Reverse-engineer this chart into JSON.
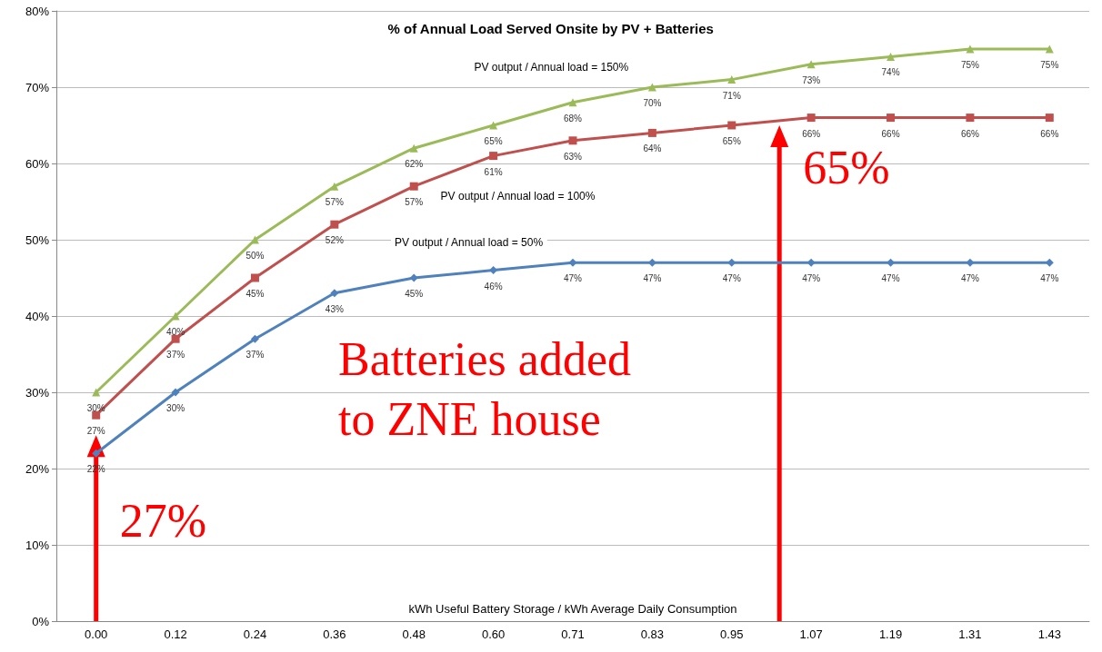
{
  "chart_data": {
    "type": "line",
    "title": "% of Annual Load Served Onsite by PV + Batteries",
    "xlabel": "kWh Useful Battery Storage / kWh Average Daily Consumption",
    "categories": [
      "0.00",
      "0.12",
      "0.24",
      "0.36",
      "0.48",
      "0.60",
      "0.71",
      "0.83",
      "0.95",
      "1.07",
      "1.19",
      "1.31",
      "1.43"
    ],
    "series": [
      {
        "name": "PV output / Annual load = 150%",
        "color": "#9bbb59",
        "marker": "triangle",
        "values": [
          30,
          40,
          50,
          57,
          62,
          65,
          68,
          70,
          71,
          73,
          74,
          75,
          75
        ],
        "value_labels": [
          "30%",
          "40%",
          "50%",
          "57%",
          "62%",
          "65%",
          "68%",
          "70%",
          "71%",
          "73%",
          "74%",
          "75%",
          "75%"
        ]
      },
      {
        "name": "PV output / Annual load = 100%",
        "color": "#c0504d",
        "marker": "square",
        "values": [
          27,
          37,
          45,
          52,
          57,
          61,
          63,
          64,
          65,
          66,
          66,
          66,
          66
        ],
        "value_labels": [
          "27%",
          "37%",
          "45%",
          "52%",
          "57%",
          "61%",
          "63%",
          "64%",
          "65%",
          "66%",
          "66%",
          "66%",
          "66%"
        ]
      },
      {
        "name": "PV output / Annual load = 50%",
        "color": "#4f81bd",
        "marker": "diamond",
        "values": [
          22,
          30,
          37,
          43,
          45,
          46,
          47,
          47,
          47,
          47,
          47,
          47,
          47
        ],
        "value_labels": [
          "22%",
          "30%",
          "37%",
          "43%",
          "45%",
          "46%",
          "47%",
          "47%",
          "47%",
          "47%",
          "47%",
          "47%",
          "47%"
        ]
      }
    ],
    "ylim": [
      0,
      80
    ],
    "yticks": [
      {
        "value": 0,
        "label": "0%"
      },
      {
        "value": 10,
        "label": "10%"
      },
      {
        "value": 20,
        "label": "20%"
      },
      {
        "value": 30,
        "label": "30%"
      },
      {
        "value": 40,
        "label": "40%"
      },
      {
        "value": 50,
        "label": "50%"
      },
      {
        "value": 60,
        "label": "60%"
      },
      {
        "value": 70,
        "label": "70%"
      },
      {
        "value": 80,
        "label": "80%"
      }
    ],
    "grid": "y",
    "legend": false,
    "annotations": [
      {
        "text": "27%",
        "x": "0.00",
        "y": 27
      },
      {
        "text": "65%",
        "x": "0.95",
        "y": 65
      },
      "Batteries added to ZNE house"
    ]
  }
}
